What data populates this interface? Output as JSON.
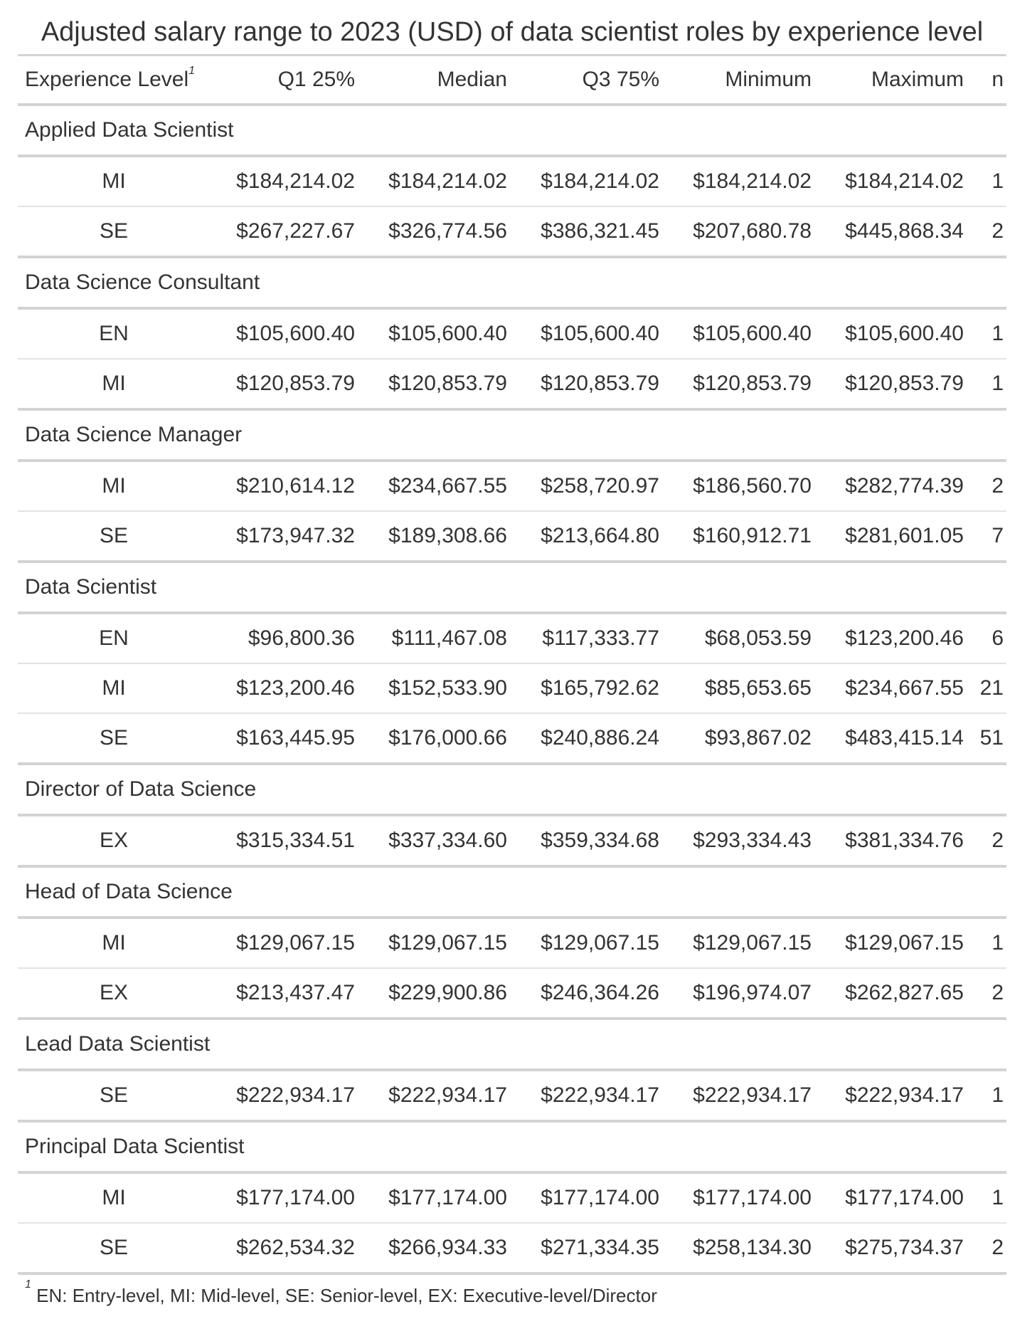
{
  "title": "Adjusted salary range to 2023 (USD) of data scientist roles by experience level",
  "headers": {
    "experience_level": "Experience Level",
    "footnote_marker": "1",
    "q1": "Q1 25%",
    "median": "Median",
    "q3": "Q3 75%",
    "minimum": "Minimum",
    "maximum": "Maximum",
    "n": "n"
  },
  "groups": [
    {
      "name": "Applied Data Scientist",
      "rows": [
        {
          "level": "MI",
          "q1": "$184,214.02",
          "median": "$184,214.02",
          "q3": "$184,214.02",
          "min": "$184,214.02",
          "max": "$184,214.02",
          "n": "1"
        },
        {
          "level": "SE",
          "q1": "$267,227.67",
          "median": "$326,774.56",
          "q3": "$386,321.45",
          "min": "$207,680.78",
          "max": "$445,868.34",
          "n": "2"
        }
      ]
    },
    {
      "name": "Data Science Consultant",
      "rows": [
        {
          "level": "EN",
          "q1": "$105,600.40",
          "median": "$105,600.40",
          "q3": "$105,600.40",
          "min": "$105,600.40",
          "max": "$105,600.40",
          "n": "1"
        },
        {
          "level": "MI",
          "q1": "$120,853.79",
          "median": "$120,853.79",
          "q3": "$120,853.79",
          "min": "$120,853.79",
          "max": "$120,853.79",
          "n": "1"
        }
      ]
    },
    {
      "name": "Data Science Manager",
      "rows": [
        {
          "level": "MI",
          "q1": "$210,614.12",
          "median": "$234,667.55",
          "q3": "$258,720.97",
          "min": "$186,560.70",
          "max": "$282,774.39",
          "n": "2"
        },
        {
          "level": "SE",
          "q1": "$173,947.32",
          "median": "$189,308.66",
          "q3": "$213,664.80",
          "min": "$160,912.71",
          "max": "$281,601.05",
          "n": "7"
        }
      ]
    },
    {
      "name": "Data Scientist",
      "rows": [
        {
          "level": "EN",
          "q1": "$96,800.36",
          "median": "$111,467.08",
          "q3": "$117,333.77",
          "min": "$68,053.59",
          "max": "$123,200.46",
          "n": "6"
        },
        {
          "level": "MI",
          "q1": "$123,200.46",
          "median": "$152,533.90",
          "q3": "$165,792.62",
          "min": "$85,653.65",
          "max": "$234,667.55",
          "n": "21"
        },
        {
          "level": "SE",
          "q1": "$163,445.95",
          "median": "$176,000.66",
          "q3": "$240,886.24",
          "min": "$93,867.02",
          "max": "$483,415.14",
          "n": "51"
        }
      ]
    },
    {
      "name": "Director of Data Science",
      "rows": [
        {
          "level": "EX",
          "q1": "$315,334.51",
          "median": "$337,334.60",
          "q3": "$359,334.68",
          "min": "$293,334.43",
          "max": "$381,334.76",
          "n": "2"
        }
      ]
    },
    {
      "name": "Head of Data Science",
      "rows": [
        {
          "level": "MI",
          "q1": "$129,067.15",
          "median": "$129,067.15",
          "q3": "$129,067.15",
          "min": "$129,067.15",
          "max": "$129,067.15",
          "n": "1"
        },
        {
          "level": "EX",
          "q1": "$213,437.47",
          "median": "$229,900.86",
          "q3": "$246,364.26",
          "min": "$196,974.07",
          "max": "$262,827.65",
          "n": "2"
        }
      ]
    },
    {
      "name": "Lead Data Scientist",
      "rows": [
        {
          "level": "SE",
          "q1": "$222,934.17",
          "median": "$222,934.17",
          "q3": "$222,934.17",
          "min": "$222,934.17",
          "max": "$222,934.17",
          "n": "1"
        }
      ]
    },
    {
      "name": "Principal Data Scientist",
      "rows": [
        {
          "level": "MI",
          "q1": "$177,174.00",
          "median": "$177,174.00",
          "q3": "$177,174.00",
          "min": "$177,174.00",
          "max": "$177,174.00",
          "n": "1"
        },
        {
          "level": "SE",
          "q1": "$262,534.32",
          "median": "$266,934.33",
          "q3": "$271,334.35",
          "min": "$258,134.30",
          "max": "$275,734.37",
          "n": "2"
        }
      ]
    }
  ],
  "footnote": {
    "marker": "1",
    "text": "EN: Entry-level, MI: Mid-level, SE: Senior-level, EX: Executive-level/Director"
  }
}
